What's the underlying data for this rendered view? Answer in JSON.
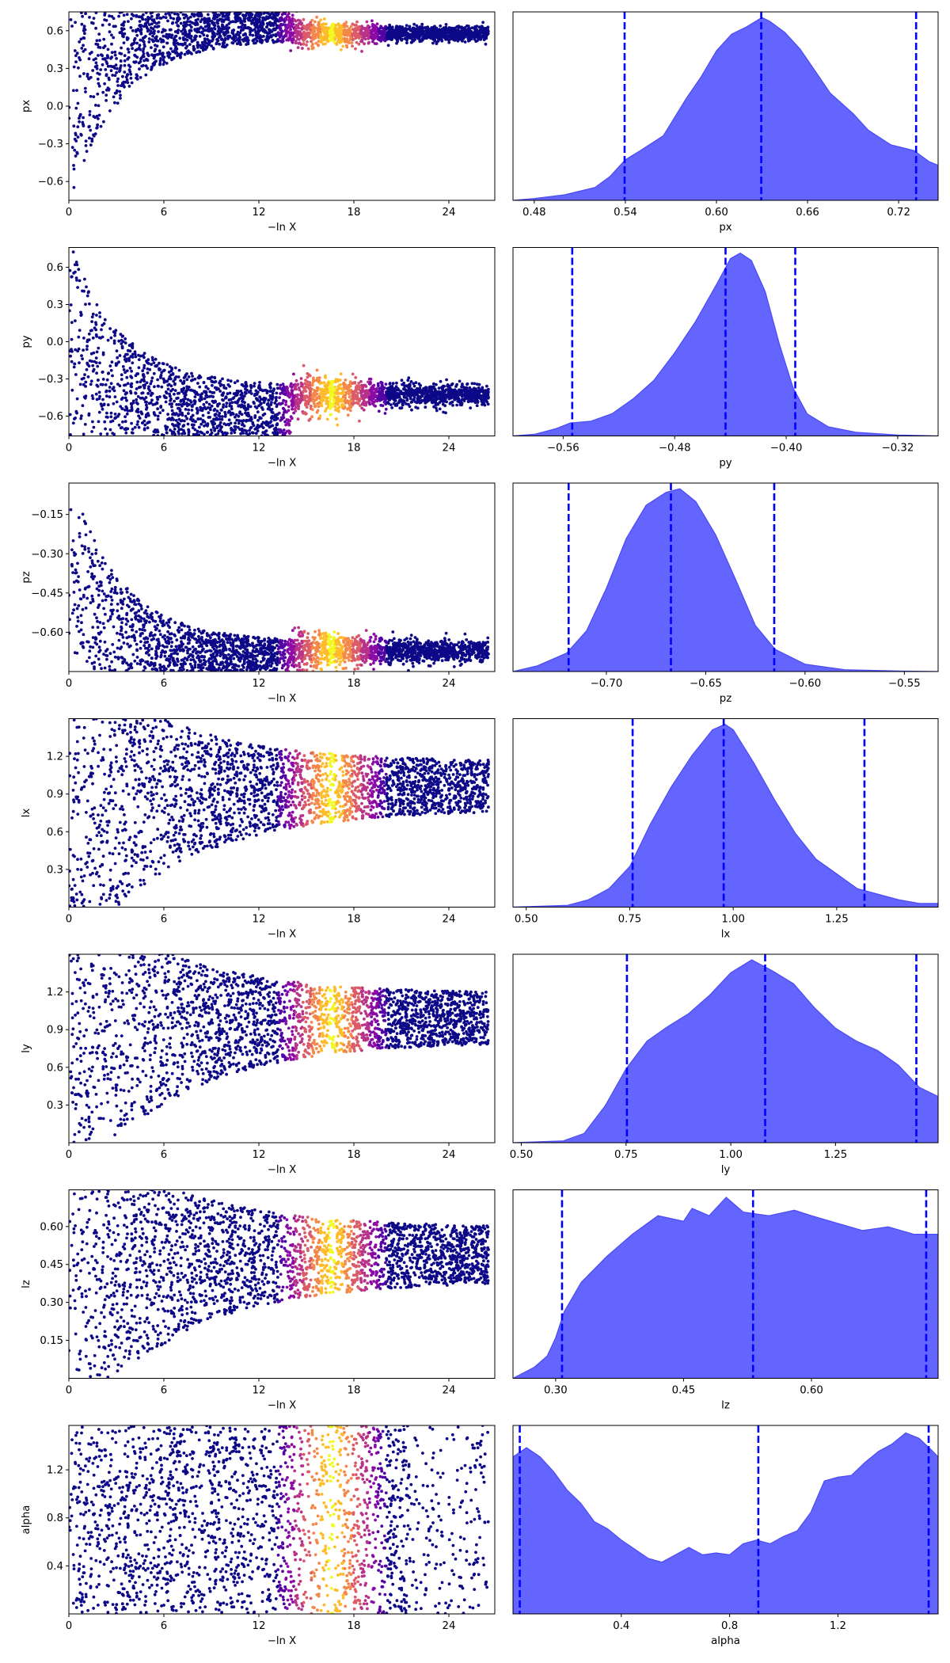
{
  "colors": {
    "density_fill": "#6464ff",
    "density_edge": "#4a4af5",
    "quantile_line": "#0000ff",
    "colormap": [
      "#0d0887",
      "#5302a3",
      "#8b0aa5",
      "#b83289",
      "#db5c68",
      "#f48849",
      "#febc2a",
      "#f0f921"
    ]
  },
  "chart_data": [
    {
      "type": "scatter",
      "panel": "trace",
      "ylabel": "px",
      "xlabel": "−ln X",
      "xlim": [
        0,
        26.9
      ],
      "xticks": [
        "0",
        "6",
        "12",
        "18",
        "24"
      ],
      "ylim": [
        -0.75,
        0.75
      ],
      "yticks": [
        "−0.6",
        "−0.3",
        "0.0",
        "0.3",
        "0.6"
      ],
      "ytick_values": [
        -0.6,
        -0.3,
        0.0,
        0.3,
        0.6
      ],
      "shape": "converge_up",
      "converged_value": 0.58
    },
    {
      "type": "area",
      "panel": "posterior",
      "xlabel": "px",
      "xlim": [
        0.466,
        0.746
      ],
      "xticks": [
        "0.48",
        "0.54",
        "0.60",
        "0.66",
        "0.72"
      ],
      "xtick_values": [
        0.48,
        0.54,
        0.6,
        0.66,
        0.72
      ],
      "quantiles": [
        0.5395,
        0.6295,
        0.7315
      ],
      "density": [
        [
          0.466,
          0.0
        ],
        [
          0.48,
          0.01
        ],
        [
          0.5,
          0.03
        ],
        [
          0.52,
          0.07
        ],
        [
          0.53,
          0.13
        ],
        [
          0.54,
          0.22
        ],
        [
          0.55,
          0.27
        ],
        [
          0.565,
          0.35
        ],
        [
          0.58,
          0.55
        ],
        [
          0.59,
          0.67
        ],
        [
          0.6,
          0.81
        ],
        [
          0.61,
          0.9
        ],
        [
          0.62,
          0.94
        ],
        [
          0.63,
          0.99
        ],
        [
          0.635,
          0.97
        ],
        [
          0.645,
          0.91
        ],
        [
          0.655,
          0.82
        ],
        [
          0.665,
          0.7
        ],
        [
          0.675,
          0.58
        ],
        [
          0.69,
          0.47
        ],
        [
          0.7,
          0.38
        ],
        [
          0.715,
          0.3
        ],
        [
          0.73,
          0.27
        ],
        [
          0.74,
          0.21
        ],
        [
          0.746,
          0.19
        ]
      ]
    },
    {
      "type": "scatter",
      "panel": "trace",
      "ylabel": "py",
      "xlabel": "−ln X",
      "xlim": [
        0,
        26.9
      ],
      "xticks": [
        "0",
        "6",
        "12",
        "18",
        "24"
      ],
      "ylim": [
        -0.76,
        0.76
      ],
      "yticks": [
        "−0.6",
        "−0.3",
        "0.0",
        "0.3",
        "0.6"
      ],
      "ytick_values": [
        -0.6,
        -0.3,
        0.0,
        0.3,
        0.6
      ],
      "shape": "converge_down",
      "converged_value": -0.43
    },
    {
      "type": "area",
      "panel": "posterior",
      "xlabel": "py",
      "xlim": [
        -0.596,
        -0.291
      ],
      "xticks": [
        "−0.56",
        "−0.48",
        "−0.40",
        "−0.32"
      ],
      "xtick_values": [
        -0.56,
        -0.48,
        -0.4,
        -0.32
      ],
      "quantiles": [
        -0.5535,
        -0.4435,
        -0.3935
      ],
      "density": [
        [
          -0.596,
          0.0
        ],
        [
          -0.58,
          0.01
        ],
        [
          -0.565,
          0.04
        ],
        [
          -0.555,
          0.07
        ],
        [
          -0.54,
          0.08
        ],
        [
          -0.525,
          0.12
        ],
        [
          -0.51,
          0.2
        ],
        [
          -0.495,
          0.3
        ],
        [
          -0.48,
          0.45
        ],
        [
          -0.465,
          0.62
        ],
        [
          -0.45,
          0.82
        ],
        [
          -0.44,
          0.96
        ],
        [
          -0.433,
          0.99
        ],
        [
          -0.425,
          0.95
        ],
        [
          -0.415,
          0.78
        ],
        [
          -0.405,
          0.5
        ],
        [
          -0.395,
          0.26
        ],
        [
          -0.385,
          0.12
        ],
        [
          -0.37,
          0.05
        ],
        [
          -0.35,
          0.02
        ],
        [
          -0.32,
          0.005
        ],
        [
          -0.291,
          0.0
        ]
      ]
    },
    {
      "type": "scatter",
      "panel": "trace",
      "ylabel": "pz",
      "xlabel": "−ln X",
      "xlim": [
        0,
        26.9
      ],
      "xticks": [
        "0",
        "6",
        "12",
        "18",
        "24"
      ],
      "ylim": [
        -0.75,
        -0.03
      ],
      "yticks": [
        "−0.60",
        "−0.45",
        "−0.30",
        "−0.15"
      ],
      "ytick_values": [
        -0.6,
        -0.45,
        -0.3,
        -0.15
      ],
      "shape": "converge_down",
      "converged_value": -0.67
    },
    {
      "type": "area",
      "panel": "posterior",
      "xlabel": "pz",
      "xlim": [
        -0.747,
        -0.533
      ],
      "xticks": [
        "−0.70",
        "−0.65",
        "−0.60",
        "−0.55"
      ],
      "xtick_values": [
        -0.7,
        -0.65,
        -0.6,
        -0.55
      ],
      "quantiles": [
        -0.719,
        -0.6675,
        -0.6155
      ],
      "density": [
        [
          -0.747,
          0.0
        ],
        [
          -0.735,
          0.03
        ],
        [
          -0.72,
          0.1
        ],
        [
          -0.71,
          0.22
        ],
        [
          -0.7,
          0.45
        ],
        [
          -0.69,
          0.72
        ],
        [
          -0.68,
          0.9
        ],
        [
          -0.67,
          0.97
        ],
        [
          -0.663,
          0.99
        ],
        [
          -0.655,
          0.92
        ],
        [
          -0.645,
          0.74
        ],
        [
          -0.635,
          0.5
        ],
        [
          -0.625,
          0.25
        ],
        [
          -0.615,
          0.12
        ],
        [
          -0.6,
          0.04
        ],
        [
          -0.58,
          0.01
        ],
        [
          -0.55,
          0.002
        ],
        [
          -0.533,
          0.0
        ]
      ]
    },
    {
      "type": "scatter",
      "panel": "trace",
      "ylabel": "lx",
      "xlabel": "−ln X",
      "xlim": [
        0,
        26.9
      ],
      "xticks": [
        "0",
        "6",
        "12",
        "18",
        "24"
      ],
      "ylim": [
        0.0,
        1.5
      ],
      "yticks": [
        "0.3",
        "0.6",
        "0.9",
        "1.2"
      ],
      "ytick_values": [
        0.3,
        0.6,
        0.9,
        1.2
      ],
      "shape": "wedge",
      "converged_value": 0.97
    },
    {
      "type": "area",
      "panel": "posterior",
      "xlabel": "lx",
      "xlim": [
        0.468,
        1.495
      ],
      "xticks": [
        "0.50",
        "0.75",
        "1.00",
        "1.25"
      ],
      "xtick_values": [
        0.5,
        0.75,
        1.0,
        1.25
      ],
      "quantiles": [
        0.757,
        0.977,
        1.317
      ],
      "density": [
        [
          0.468,
          0.0
        ],
        [
          0.6,
          0.01
        ],
        [
          0.65,
          0.04
        ],
        [
          0.7,
          0.1
        ],
        [
          0.75,
          0.22
        ],
        [
          0.8,
          0.45
        ],
        [
          0.85,
          0.65
        ],
        [
          0.9,
          0.82
        ],
        [
          0.95,
          0.96
        ],
        [
          0.98,
          0.99
        ],
        [
          1.0,
          0.96
        ],
        [
          1.05,
          0.78
        ],
        [
          1.1,
          0.58
        ],
        [
          1.15,
          0.4
        ],
        [
          1.2,
          0.26
        ],
        [
          1.25,
          0.18
        ],
        [
          1.3,
          0.1
        ],
        [
          1.35,
          0.07
        ],
        [
          1.4,
          0.04
        ],
        [
          1.45,
          0.02
        ],
        [
          1.495,
          0.02
        ]
      ]
    },
    {
      "type": "scatter",
      "panel": "trace",
      "ylabel": "ly",
      "xlabel": "−ln X",
      "xlim": [
        0,
        26.9
      ],
      "xticks": [
        "0",
        "6",
        "12",
        "18",
        "24"
      ],
      "ylim": [
        0.0,
        1.5
      ],
      "yticks": [
        "0.3",
        "0.6",
        "0.9",
        "1.2"
      ],
      "ytick_values": [
        0.3,
        0.6,
        0.9,
        1.2
      ],
      "shape": "wedge",
      "converged_value": 1.0
    },
    {
      "type": "area",
      "panel": "posterior",
      "xlabel": "ly",
      "xlim": [
        0.48,
        1.495
      ],
      "xticks": [
        "0.50",
        "0.75",
        "1.00",
        "1.25"
      ],
      "xtick_values": [
        0.5,
        0.75,
        1.0,
        1.25
      ],
      "quantiles": [
        0.752,
        1.082,
        1.443
      ],
      "density": [
        [
          0.48,
          0.0
        ],
        [
          0.6,
          0.01
        ],
        [
          0.65,
          0.05
        ],
        [
          0.7,
          0.2
        ],
        [
          0.75,
          0.4
        ],
        [
          0.8,
          0.55
        ],
        [
          0.85,
          0.63
        ],
        [
          0.9,
          0.7
        ],
        [
          0.95,
          0.8
        ],
        [
          1.0,
          0.92
        ],
        [
          1.05,
          0.99
        ],
        [
          1.1,
          0.93
        ],
        [
          1.15,
          0.86
        ],
        [
          1.2,
          0.73
        ],
        [
          1.25,
          0.62
        ],
        [
          1.3,
          0.55
        ],
        [
          1.35,
          0.5
        ],
        [
          1.4,
          0.42
        ],
        [
          1.45,
          0.3
        ],
        [
          1.495,
          0.25
        ]
      ]
    },
    {
      "type": "scatter",
      "panel": "trace",
      "ylabel": "lz",
      "xlabel": "−ln X",
      "xlim": [
        0,
        26.9
      ],
      "xticks": [
        "0",
        "6",
        "12",
        "18",
        "24"
      ],
      "ylim": [
        0.0,
        0.745
      ],
      "yticks": [
        "0.15",
        "0.30",
        "0.45",
        "0.60"
      ],
      "ytick_values": [
        0.15,
        0.3,
        0.45,
        0.6
      ],
      "shape": "wedge",
      "converged_value": 0.48
    },
    {
      "type": "area",
      "panel": "posterior",
      "xlabel": "lz",
      "xlim": [
        0.25,
        0.7485
      ],
      "xticks": [
        "0.30",
        "0.45",
        "0.60"
      ],
      "xtick_values": [
        0.3,
        0.45,
        0.6
      ],
      "quantiles": [
        0.3075,
        0.5315,
        0.7345
      ],
      "density": [
        [
          0.25,
          0.0
        ],
        [
          0.275,
          0.06
        ],
        [
          0.29,
          0.12
        ],
        [
          0.3,
          0.22
        ],
        [
          0.31,
          0.36
        ],
        [
          0.33,
          0.52
        ],
        [
          0.36,
          0.66
        ],
        [
          0.39,
          0.78
        ],
        [
          0.42,
          0.88
        ],
        [
          0.45,
          0.85
        ],
        [
          0.46,
          0.92
        ],
        [
          0.48,
          0.88
        ],
        [
          0.5,
          0.98
        ],
        [
          0.52,
          0.9
        ],
        [
          0.55,
          0.88
        ],
        [
          0.58,
          0.91
        ],
        [
          0.6,
          0.88
        ],
        [
          0.63,
          0.84
        ],
        [
          0.66,
          0.8
        ],
        [
          0.69,
          0.82
        ],
        [
          0.72,
          0.78
        ],
        [
          0.7485,
          0.78
        ]
      ]
    },
    {
      "type": "scatter",
      "panel": "trace",
      "ylabel": "alpha",
      "xlabel": "−ln X",
      "xlim": [
        0,
        26.9
      ],
      "xticks": [
        "0",
        "6",
        "12",
        "18",
        "24"
      ],
      "ylim": [
        0.0,
        1.57
      ],
      "yticks": [
        "0.4",
        "0.8",
        "1.2"
      ],
      "ytick_values": [
        0.4,
        0.8,
        1.2
      ],
      "shape": "wedge_wide",
      "converged_value": 0.8
    },
    {
      "type": "area",
      "panel": "posterior",
      "xlabel": "alpha",
      "xlim": [
        0.0,
        1.57
      ],
      "xticks": [
        "0.4",
        "0.8",
        "1.2"
      ],
      "xtick_values": [
        0.4,
        0.8,
        1.2
      ],
      "quantiles": [
        0.025,
        0.906,
        1.535
      ],
      "density": [
        [
          0.0,
          0.85
        ],
        [
          0.05,
          0.9
        ],
        [
          0.1,
          0.85
        ],
        [
          0.15,
          0.77
        ],
        [
          0.2,
          0.67
        ],
        [
          0.25,
          0.6
        ],
        [
          0.3,
          0.5
        ],
        [
          0.35,
          0.46
        ],
        [
          0.4,
          0.4
        ],
        [
          0.45,
          0.35
        ],
        [
          0.5,
          0.3
        ],
        [
          0.55,
          0.28
        ],
        [
          0.6,
          0.32
        ],
        [
          0.65,
          0.36
        ],
        [
          0.7,
          0.32
        ],
        [
          0.75,
          0.33
        ],
        [
          0.8,
          0.32
        ],
        [
          0.85,
          0.38
        ],
        [
          0.9,
          0.4
        ],
        [
          0.95,
          0.38
        ],
        [
          1.0,
          0.42
        ],
        [
          1.05,
          0.45
        ],
        [
          1.1,
          0.55
        ],
        [
          1.15,
          0.72
        ],
        [
          1.2,
          0.74
        ],
        [
          1.25,
          0.75
        ],
        [
          1.3,
          0.82
        ],
        [
          1.35,
          0.88
        ],
        [
          1.4,
          0.92
        ],
        [
          1.45,
          0.98
        ],
        [
          1.5,
          0.95
        ],
        [
          1.55,
          0.88
        ],
        [
          1.57,
          0.85
        ]
      ]
    }
  ]
}
